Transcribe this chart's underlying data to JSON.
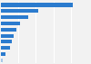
{
  "values": [
    1800,
    950,
    680,
    490,
    400,
    330,
    270,
    220,
    120,
    50
  ],
  "bar_color": "#2b7bce",
  "last_bar_color": "#a8c8e8",
  "background_color": "#f2f2f2",
  "plot_bg_color": "#f2f2f2",
  "grid_color": "#ffffff",
  "xlim": [
    0,
    2200
  ],
  "n_gridlines": 5
}
